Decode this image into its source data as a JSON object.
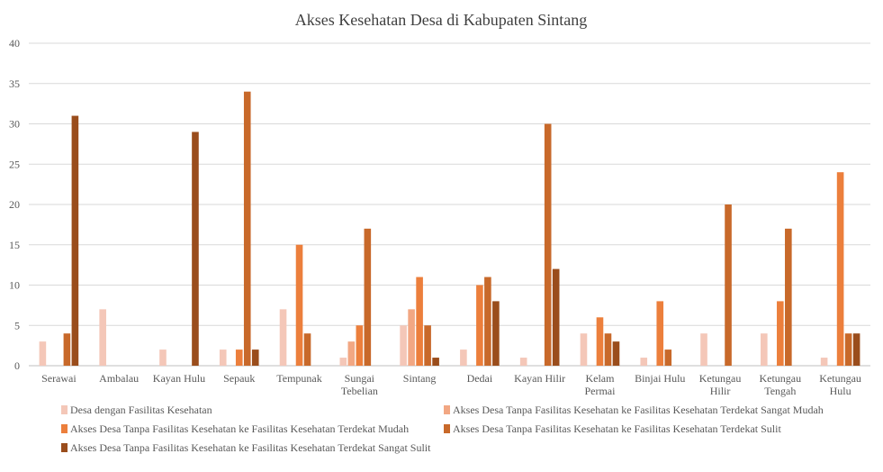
{
  "chart_data": {
    "type": "bar",
    "title": "Akses Kesehatan Desa di Kabupaten Sintang",
    "xlabel": "",
    "ylabel": "",
    "ylim": [
      0,
      40
    ],
    "yticks": [
      "0",
      "5",
      "10",
      "15",
      "20",
      "25",
      "30",
      "35",
      "40"
    ],
    "grid": true,
    "legend_position": "bottom",
    "categories": [
      [
        "Serawai"
      ],
      [
        "Ambalau"
      ],
      [
        "Kayan Hulu"
      ],
      [
        "Sepauk"
      ],
      [
        "Tempunak"
      ],
      [
        "Sungai",
        "Tebelian"
      ],
      [
        "Sintang"
      ],
      [
        "Dedai"
      ],
      [
        "Kayan Hilir"
      ],
      [
        "Kelam",
        "Permai"
      ],
      [
        "Binjai Hulu"
      ],
      [
        "Ketungau",
        "Hilir"
      ],
      [
        "Ketungau",
        "Tengah"
      ],
      [
        "Ketungau",
        "Hulu"
      ]
    ],
    "series": [
      {
        "name": "Desa dengan Fasilitas Kesehatan",
        "color": "#f4c7b8",
        "values": [
          3,
          7,
          2,
          2,
          7,
          1,
          5,
          2,
          1,
          4,
          1,
          4,
          4,
          1
        ]
      },
      {
        "name": "Akses Desa Tanpa Fasilitas Kesehatan ke Fasilitas Kesehatan Terdekat Sangat Mudah",
        "color": "#f2a783",
        "values": [
          0,
          0,
          0,
          0,
          0,
          3,
          7,
          0,
          0,
          0,
          0,
          0,
          0,
          0
        ]
      },
      {
        "name": "Akses Desa Tanpa Fasilitas Kesehatan ke Fasilitas Kesehatan Terdekat Mudah",
        "color": "#ec7f3c",
        "values": [
          0,
          0,
          0,
          2,
          15,
          5,
          11,
          10,
          0,
          6,
          8,
          0,
          8,
          24
        ]
      },
      {
        "name": "Akses Desa Tanpa Fasilitas Kesehatan ke Fasilitas Kesehatan Terdekat Sulit",
        "color": "#c8692a",
        "values": [
          4,
          0,
          0,
          34,
          4,
          17,
          5,
          11,
          30,
          4,
          2,
          20,
          17,
          4
        ]
      },
      {
        "name": "Akses Desa Tanpa Fasilitas Kesehatan ke Fasilitas Kesehatan Terdekat Sangat Sulit",
        "color": "#9a4d1c",
        "values": [
          31,
          0,
          29,
          2,
          0,
          0,
          1,
          8,
          12,
          3,
          0,
          0,
          0,
          4
        ]
      }
    ]
  }
}
